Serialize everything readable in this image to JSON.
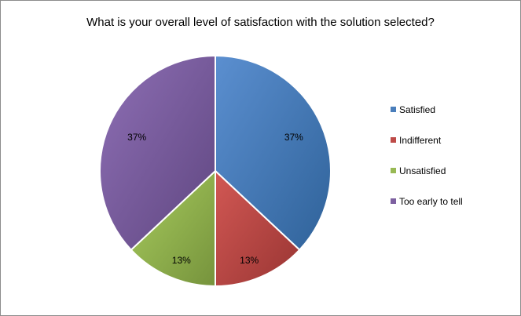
{
  "chart_data": {
    "type": "pie",
    "title": "What is your overall level of satisfaction with the solution selected?",
    "categories": [
      "Satisfied",
      "Indifferent",
      "Unsatisfied",
      "Too early to tell"
    ],
    "values": [
      37,
      13,
      13,
      37
    ],
    "labels": [
      "37%",
      "13%",
      "13%",
      "37%"
    ],
    "colors": [
      "#4a7ebb",
      "#be4b48",
      "#98b954",
      "#7d60a0"
    ],
    "legend_position": "right"
  }
}
